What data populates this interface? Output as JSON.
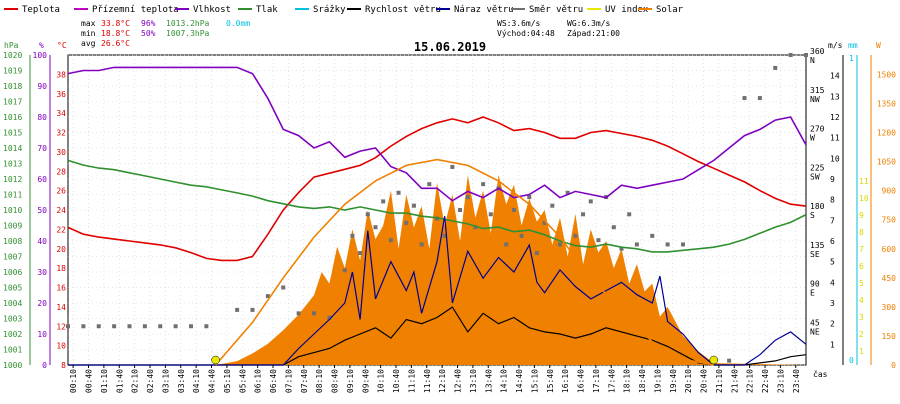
{
  "chart_data": {
    "type": "line",
    "title": "15.06.2019",
    "xlabel": "čas",
    "legend": [
      {
        "label": "Teplota",
        "color": "#e00000"
      },
      {
        "label": "Přízemní teplota",
        "color": "#c000c0"
      },
      {
        "label": "Vlhkost",
        "color": "#8000c0"
      },
      {
        "label": "Tlak",
        "color": "#309030"
      },
      {
        "label": "Srážky",
        "color": "#00c0e0"
      },
      {
        "label": "Rychlost větru",
        "color": "#000000"
      },
      {
        "label": "Náraz větru",
        "color": "#000090"
      },
      {
        "label": "Směr větru",
        "color": "#707070"
      },
      {
        "label": "UV index",
        "color": "#e8e800"
      },
      {
        "label": "Solar",
        "color": "#f08000"
      }
    ],
    "stats": {
      "max": {
        "label": "max",
        "temp": "33.8°C",
        "hum": "96%",
        "press": "1013.2hPa",
        "rain": "0.0mm"
      },
      "min": {
        "label": "min",
        "temp": "18.8°C",
        "hum": "50%",
        "press": "1007.3hPa"
      },
      "avg": {
        "label": "avg",
        "temp": "26.6°C"
      }
    },
    "wind_info": {
      "ws": "WS:3.6m/s",
      "wg": "WG:6.3m/s",
      "sunrise": "Východ:04:48",
      "sunset": "Západ:21:00"
    },
    "axes": {
      "hpa": {
        "unit": "hPa",
        "color": "#309030",
        "range": [
          1000,
          1020
        ],
        "ticks": [
          "1000",
          "1001",
          "1002",
          "1003",
          "1004",
          "1005",
          "1006",
          "1007",
          "1008",
          "1009",
          "1010",
          "1011",
          "1012",
          "1013",
          "1014",
          "1015",
          "1016",
          "1017",
          "1018",
          "1019",
          "1020"
        ]
      },
      "hum": {
        "unit": "%",
        "color": "#8000c0",
        "range": [
          0,
          100
        ],
        "ticks": [
          "0",
          "10",
          "20",
          "30",
          "40",
          "50",
          "60",
          "70",
          "80",
          "90",
          "100"
        ]
      },
      "temp": {
        "unit": "°C",
        "color": "#e00000",
        "range": [
          8,
          40
        ],
        "ticks": [
          "8",
          "10",
          "12",
          "14",
          "16",
          "18",
          "20",
          "22",
          "24",
          "26",
          "28",
          "30",
          "32",
          "34",
          "36",
          "38"
        ]
      },
      "dir": {
        "range": [
          0,
          360
        ],
        "ticks": [
          {
            "deg": "45",
            "name": "NE"
          },
          {
            "deg": "90",
            "name": "E"
          },
          {
            "deg": "135",
            "name": "SE"
          },
          {
            "deg": "180",
            "name": "S"
          },
          {
            "deg": "225",
            "name": "SW"
          },
          {
            "deg": "270",
            "name": "W"
          },
          {
            "deg": "315",
            "name": "NW"
          },
          {
            "deg": "360",
            "name": "N"
          }
        ]
      },
      "ms": {
        "unit": "m/s",
        "range": [
          0,
          15
        ],
        "ticks": [
          "1",
          "2",
          "3",
          "4",
          "5",
          "6",
          "7",
          "8",
          "9",
          "10",
          "11",
          "12",
          "13",
          "14"
        ]
      },
      "mm": {
        "unit": "mm",
        "color": "#00c0e0",
        "range": [
          0,
          1
        ],
        "ticks": [
          "0",
          "1"
        ]
      },
      "uv": {
        "unit": "",
        "color": "#d8d800",
        "ticks": [
          "1",
          "2",
          "3",
          "4",
          "5",
          "6",
          "7",
          "8",
          "9",
          "10",
          "11"
        ]
      },
      "w": {
        "unit": "W",
        "color": "#f08000",
        "range": [
          0,
          1600
        ],
        "ticks": [
          "0",
          "150",
          "300",
          "450",
          "600",
          "750",
          "900",
          "1050",
          "1200",
          "1350",
          "1500"
        ]
      }
    },
    "x_ticks": [
      "00:10",
      "00:40",
      "01:10",
      "01:40",
      "02:10",
      "02:40",
      "03:10",
      "03:40",
      "04:10",
      "04:40",
      "05:10",
      "05:40",
      "06:10",
      "06:40",
      "07:10",
      "07:40",
      "08:10",
      "08:40",
      "09:10",
      "09:40",
      "10:10",
      "10:40",
      "11:10",
      "11:40",
      "12:10",
      "12:40",
      "13:10",
      "13:40",
      "14:10",
      "14:40",
      "15:10",
      "15:40",
      "16:10",
      "16:40",
      "17:10",
      "17:40",
      "18:10",
      "18:40",
      "19:10",
      "19:40",
      "20:10",
      "20:40",
      "21:10",
      "21:40",
      "22:10",
      "22:40",
      "23:10",
      "23:40"
    ],
    "series": [
      {
        "name": "Teplota",
        "axis": "temp",
        "color": "#e00000",
        "x": [
          0,
          0.5,
          1,
          1.5,
          2,
          2.5,
          3,
          3.5,
          4,
          4.5,
          5,
          5.5,
          6,
          6.5,
          7,
          7.5,
          8,
          8.5,
          9,
          9.5,
          10,
          10.5,
          11,
          11.5,
          12,
          12.5,
          13,
          13.5,
          14,
          14.5,
          15,
          15.5,
          16,
          16.5,
          17,
          17.5,
          18,
          18.5,
          19,
          19.5,
          20,
          20.5,
          21,
          21.5,
          22,
          22.5,
          23,
          23.5,
          24
        ],
        "y": [
          22.2,
          21.5,
          21.2,
          21.0,
          20.8,
          20.6,
          20.4,
          20.1,
          19.6,
          19.0,
          18.8,
          18.8,
          19.2,
          21.5,
          24.0,
          25.8,
          27.4,
          27.8,
          28.2,
          28.6,
          29.4,
          30.6,
          31.6,
          32.4,
          33.0,
          33.4,
          33.0,
          33.6,
          33.0,
          32.2,
          32.4,
          32.0,
          31.4,
          31.4,
          32.0,
          32.2,
          31.9,
          31.6,
          31.2,
          30.6,
          29.8,
          29.0,
          28.3,
          27.6,
          26.9,
          26.0,
          25.2,
          24.6,
          24.4
        ]
      },
      {
        "name": "Vlhkost",
        "axis": "hum",
        "color": "#8000c0",
        "x": [
          0,
          0.5,
          1,
          1.5,
          2,
          2.5,
          3,
          3.5,
          4,
          4.5,
          5,
          5.5,
          6,
          6.5,
          7,
          7.5,
          8,
          8.5,
          9,
          9.5,
          10,
          10.5,
          11,
          11.5,
          12,
          12.5,
          13,
          13.5,
          14,
          14.5,
          15,
          15.5,
          16,
          16.5,
          17,
          17.5,
          18,
          18.5,
          19,
          19.5,
          20,
          20.5,
          21,
          21.5,
          22,
          22.5,
          23,
          23.5,
          24
        ],
        "y": [
          94,
          95,
          95,
          96,
          96,
          96,
          96,
          96,
          96,
          96,
          96,
          96,
          94,
          86,
          76,
          74,
          70,
          72,
          67,
          69,
          70,
          64,
          62,
          57,
          57,
          53,
          56,
          54,
          57,
          54,
          55,
          58,
          54,
          56,
          55,
          54,
          58,
          57,
          58,
          59,
          60,
          63,
          66,
          70,
          74,
          76,
          79,
          80,
          71
        ]
      },
      {
        "name": "Tlak",
        "axis": "hpa",
        "color": "#309030",
        "x": [
          0,
          0.5,
          1,
          1.5,
          2,
          2.5,
          3,
          3.5,
          4,
          4.5,
          5,
          5.5,
          6,
          6.5,
          7,
          7.5,
          8,
          8.5,
          9,
          9.5,
          10,
          10.5,
          11,
          11.5,
          12,
          12.5,
          13,
          13.5,
          14,
          14.5,
          15,
          15.5,
          16,
          16.5,
          17,
          17.5,
          18,
          18.5,
          19,
          19.5,
          20,
          20.5,
          21,
          21.5,
          22,
          22.5,
          23,
          23.5,
          24
        ],
        "y": [
          1013.2,
          1012.9,
          1012.7,
          1012.6,
          1012.4,
          1012.2,
          1012.0,
          1011.8,
          1011.6,
          1011.5,
          1011.3,
          1011.1,
          1010.9,
          1010.6,
          1010.4,
          1010.2,
          1010.1,
          1010.2,
          1010.0,
          1010.2,
          1010.0,
          1009.8,
          1009.8,
          1009.6,
          1009.5,
          1009.3,
          1009.1,
          1008.8,
          1008.9,
          1008.6,
          1008.7,
          1008.4,
          1008.0,
          1007.7,
          1007.6,
          1007.8,
          1007.6,
          1007.5,
          1007.3,
          1007.3,
          1007.4,
          1007.5,
          1007.6,
          1007.8,
          1008.1,
          1008.5,
          1008.9,
          1009.2,
          1009.7
        ]
      },
      {
        "name": "Rychlost větru",
        "axis": "ms",
        "color": "#000000",
        "x": [
          0,
          4.5,
          5.5,
          6.5,
          7,
          7.5,
          8,
          8.5,
          9,
          9.5,
          10,
          10.5,
          11,
          11.5,
          12,
          12.5,
          13,
          13.5,
          14,
          14.5,
          15,
          15.5,
          16,
          16.5,
          17,
          17.5,
          18,
          18.5,
          19,
          19.5,
          20,
          20.5,
          21,
          21.5,
          22,
          22.5,
          23,
          23.5,
          24
        ],
        "y": [
          0,
          0,
          0,
          0,
          0,
          0.4,
          0.6,
          0.8,
          1.2,
          1.5,
          1.8,
          1.3,
          2.2,
          2.0,
          2.3,
          2.8,
          1.6,
          2.5,
          2.0,
          2.3,
          1.8,
          1.6,
          1.5,
          1.3,
          1.5,
          1.8,
          1.6,
          1.4,
          1.2,
          0.9,
          0.5,
          0.1,
          0,
          0,
          0,
          0.1,
          0.2,
          0.4,
          0.5
        ]
      },
      {
        "name": "Náraz větru",
        "axis": "ms",
        "color": "#000090",
        "x": [
          0,
          4.5,
          5.5,
          6.5,
          7,
          7.5,
          8,
          8.5,
          9,
          9.25,
          9.5,
          9.75,
          10,
          10.5,
          11,
          11.25,
          11.5,
          12,
          12.25,
          12.5,
          13,
          13.5,
          14,
          14.5,
          15,
          15.25,
          15.5,
          16,
          16.5,
          17,
          17.5,
          18,
          18.5,
          19,
          19.25,
          19.5,
          20,
          20.5,
          21,
          21.5,
          22,
          22.5,
          23,
          23.5,
          24
        ],
        "y": [
          0,
          0,
          0,
          0,
          0,
          0.8,
          1.5,
          2.2,
          3.0,
          4.5,
          2.2,
          6.5,
          3.2,
          5.0,
          3.6,
          4.5,
          2.5,
          5.0,
          7.2,
          3.0,
          5.5,
          4.2,
          5.2,
          4.5,
          5.8,
          4.0,
          3.5,
          4.6,
          3.8,
          3.2,
          3.6,
          4.0,
          3.4,
          3.0,
          4.3,
          2.1,
          1.5,
          0.6,
          0,
          0,
          0,
          0.5,
          1.2,
          1.6,
          1.0
        ]
      },
      {
        "name": "Směr větru",
        "axis": "dir",
        "color": "#707070",
        "type": "scatter",
        "x": [
          0,
          0.5,
          1,
          1.5,
          2,
          2.5,
          3,
          3.5,
          4,
          4.5,
          5.5,
          6,
          6.5,
          7,
          7.5,
          8,
          8.5,
          9,
          9.25,
          9.5,
          9.75,
          10,
          10.25,
          10.5,
          10.75,
          11,
          11.25,
          11.5,
          11.75,
          12,
          12.25,
          12.5,
          12.75,
          13,
          13.25,
          13.5,
          13.75,
          14,
          14.25,
          14.5,
          14.75,
          15,
          15.25,
          15.5,
          15.75,
          16,
          16.25,
          16.5,
          16.75,
          17,
          17.25,
          17.5,
          17.75,
          18,
          18.25,
          18.5,
          19,
          19.5,
          20,
          21.5,
          22,
          22.5,
          23,
          23.5,
          24
        ],
        "y": [
          45,
          45,
          45,
          45,
          45,
          45,
          45,
          45,
          45,
          45,
          64,
          64,
          80,
          90,
          60,
          60,
          55,
          110,
          150,
          130,
          175,
          160,
          190,
          145,
          200,
          165,
          185,
          140,
          210,
          170,
          150,
          230,
          180,
          195,
          160,
          210,
          175,
          205,
          140,
          180,
          150,
          195,
          130,
          165,
          185,
          140,
          200,
          150,
          175,
          190,
          145,
          195,
          160,
          135,
          175,
          140,
          150,
          140,
          140,
          5,
          310,
          310,
          345,
          360,
          360
        ]
      },
      {
        "name": "Solar",
        "axis": "w",
        "color": "#f08000",
        "type": "area",
        "x": [
          0,
          4.8,
          5.5,
          6,
          6.5,
          7,
          7.5,
          8,
          8.25,
          8.5,
          8.75,
          9,
          9.25,
          9.5,
          9.75,
          10,
          10.25,
          10.5,
          10.75,
          11,
          11.25,
          11.5,
          11.75,
          12,
          12.25,
          12.5,
          12.75,
          13,
          13.25,
          13.5,
          13.75,
          14,
          14.25,
          14.5,
          14.75,
          15,
          15.25,
          15.5,
          15.75,
          16,
          16.25,
          16.5,
          16.75,
          17,
          17.25,
          17.5,
          17.75,
          18,
          18.25,
          18.5,
          18.75,
          19,
          19.25,
          19.5,
          20,
          20.5,
          21,
          24
        ],
        "y": [
          0,
          0,
          20,
          60,
          110,
          180,
          260,
          360,
          480,
          420,
          610,
          500,
          700,
          540,
          800,
          650,
          720,
          900,
          600,
          880,
          710,
          820,
          600,
          940,
          720,
          880,
          640,
          980,
          760,
          900,
          680,
          980,
          830,
          930,
          720,
          860,
          740,
          800,
          620,
          760,
          560,
          780,
          520,
          700,
          580,
          640,
          500,
          600,
          420,
          520,
          380,
          420,
          250,
          300,
          150,
          70,
          10,
          0
        ]
      },
      {
        "name": "Solar theoretical",
        "axis": "w",
        "color": "#f08000",
        "type": "line",
        "x": [
          4.8,
          6,
          7,
          8,
          9,
          10,
          11,
          12,
          13,
          14,
          15,
          16,
          17,
          18,
          19,
          20,
          21
        ],
        "y": [
          0,
          220,
          450,
          660,
          830,
          950,
          1030,
          1060,
          1030,
          950,
          830,
          660,
          450,
          280,
          120,
          30,
          0
        ]
      }
    ],
    "markers": [
      {
        "name": "sunrise",
        "x": 4.8,
        "color": "#e8e800"
      },
      {
        "name": "sunset",
        "x": 21.0,
        "color": "#e8e800"
      }
    ]
  }
}
